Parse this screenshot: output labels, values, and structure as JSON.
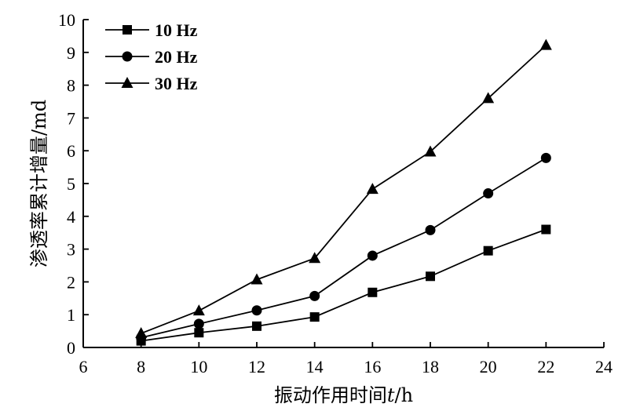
{
  "chart_data": {
    "type": "line",
    "title": "",
    "xlabel": "振动作用时间",
    "xlabel_var": "t",
    "xlabel_unit": "/h",
    "ylabel": "渗透率累计增量/md",
    "xlim": [
      6,
      24
    ],
    "ylim": [
      0,
      10
    ],
    "x_ticks": [
      6,
      8,
      10,
      12,
      14,
      16,
      18,
      20,
      22,
      24
    ],
    "y_ticks": [
      0,
      1,
      2,
      3,
      4,
      5,
      6,
      7,
      8,
      9,
      10
    ],
    "grid": false,
    "legend_position": "top-left",
    "x": [
      8,
      10,
      12,
      14,
      16,
      18,
      20,
      22
    ],
    "series": [
      {
        "name": "10 Hz",
        "marker": "square",
        "values": [
          0.2,
          0.45,
          0.65,
          0.93,
          1.68,
          2.17,
          2.95,
          3.6
        ]
      },
      {
        "name": "20 Hz",
        "marker": "circle",
        "values": [
          0.3,
          0.72,
          1.13,
          1.57,
          2.8,
          3.58,
          4.7,
          5.78
        ]
      },
      {
        "name": "30 Hz",
        "marker": "triangle",
        "values": [
          0.43,
          1.12,
          2.07,
          2.72,
          4.83,
          5.97,
          7.6,
          9.22
        ]
      }
    ],
    "colors": {
      "line": "#000000",
      "marker": "#000000"
    }
  }
}
